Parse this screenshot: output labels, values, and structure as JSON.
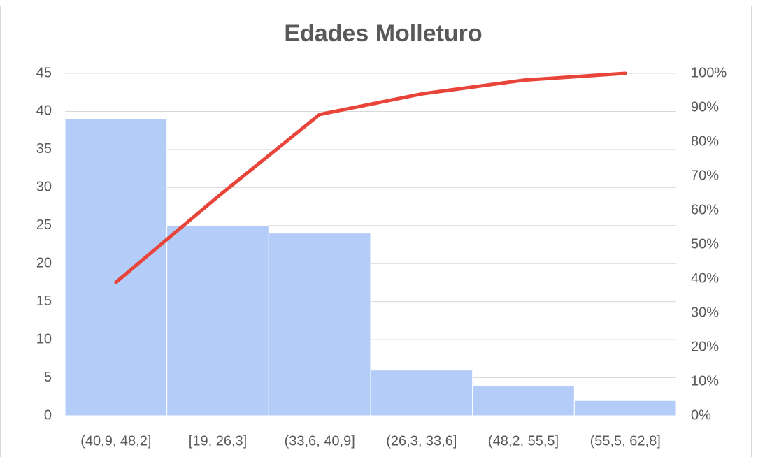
{
  "chart_data": {
    "type": "pareto",
    "title": "Edades Molleturo",
    "categories": [
      "(40,9, 48,2]",
      "[19, 26,3]",
      "(33,6, 40,9]",
      "(26,3, 33,6]",
      "(48,2, 55,5]",
      "(55,5, 62,8]"
    ],
    "series": [
      {
        "color": "#b4ccf8",
        "values": [
          39,
          25,
          24,
          6,
          4,
          2
        ]
      },
      {
        "color": "#e8443a",
        "values": [
          39,
          64,
          88,
          94,
          98,
          100
        ],
        "axis": "y2"
      }
    ],
    "ylim": [
      0,
      45
    ],
    "yticks": [
      0,
      5,
      10,
      15,
      20,
      25,
      30,
      35,
      40,
      45
    ],
    "y2lim": [
      0,
      100
    ],
    "y2ticks": [
      {
        "value": 0,
        "label": "0%"
      },
      {
        "value": 10,
        "label": "10%"
      },
      {
        "value": 20,
        "label": "20%"
      },
      {
        "value": 30,
        "label": "30%"
      },
      {
        "value": 40,
        "label": "40%"
      },
      {
        "value": 50,
        "label": "50%"
      },
      {
        "value": 60,
        "label": "60%"
      },
      {
        "value": 70,
        "label": "70%"
      },
      {
        "value": 80,
        "label": "80%"
      },
      {
        "value": 90,
        "label": "90%"
      },
      {
        "value": 100,
        "label": "100%"
      }
    ],
    "grid": true
  }
}
